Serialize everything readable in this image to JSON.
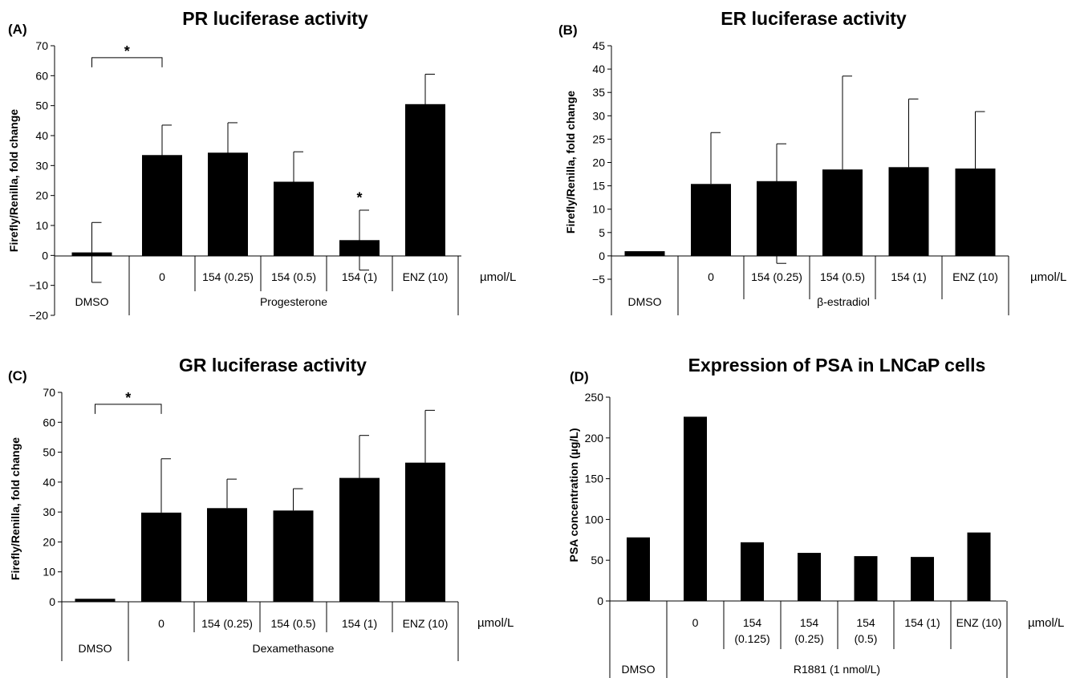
{
  "figure": {
    "panels": [
      {
        "letter": "(A)",
        "chart_data": {
          "type": "bar",
          "title": "PR luciferase activity",
          "ylabel": "Firefly/Renilla, fold change",
          "xunit": "µmol/L",
          "ylim": [
            -20,
            70
          ],
          "yticks": [
            "70",
            "60",
            "50",
            "40",
            "30",
            "20",
            "10",
            "0",
            "−10",
            "−20"
          ],
          "categories": [
            "",
            "0",
            "154 (0.25)",
            "154 (0.5)",
            "154 (1)",
            "ENZ (10)"
          ],
          "values": [
            1,
            33.5,
            34.3,
            24.6,
            5.1,
            50.5
          ],
          "errors": [
            10,
            10,
            10,
            10,
            10,
            10
          ],
          "groups": [
            {
              "label": "DMSO",
              "span": 1
            },
            {
              "label": "Progesterone",
              "span": 5
            }
          ],
          "significance": [
            {
              "type": "bracket",
              "from": 0,
              "to": 1,
              "y": 66,
              "label": "*"
            },
            {
              "type": "mark",
              "index": 4,
              "y": 16,
              "label": "*"
            }
          ],
          "grid": false,
          "legend": "none"
        }
      },
      {
        "letter": "(B)",
        "chart_data": {
          "type": "bar",
          "title": "ER luciferase activity",
          "ylabel": "Firefly/Renilla, fold change",
          "xunit": "µmol/L",
          "ylim": [
            -5,
            45
          ],
          "yticks": [
            "45",
            "40",
            "35",
            "30",
            "25",
            "20",
            "15",
            "10",
            "5",
            "0",
            "−5"
          ],
          "categories": [
            "",
            "0",
            "154 (0.25)",
            "154 (0.5)",
            "154 (1)",
            "ENZ (10)"
          ],
          "values": [
            1,
            15.4,
            16,
            18.5,
            19,
            18.7
          ],
          "errors": [
            0,
            11,
            8,
            20,
            14.6,
            12.2
          ],
          "lower_error_index": 2,
          "lower_error_value": -1.6,
          "groups": [
            {
              "label": "DMSO",
              "span": 1
            },
            {
              "label": "β-estradiol",
              "span": 5
            }
          ],
          "significance": [],
          "grid": false,
          "legend": "none"
        }
      },
      {
        "letter": "(C)",
        "chart_data": {
          "type": "bar",
          "title": "GR luciferase activity",
          "ylabel": "Firefly/Renilla, fold change",
          "xunit": "µmol/L",
          "ylim": [
            0,
            70
          ],
          "yticks": [
            "70",
            "60",
            "50",
            "40",
            "30",
            "20",
            "10",
            "0"
          ],
          "categories": [
            "",
            "0",
            "154 (0.25)",
            "154 (0.5)",
            "154 (1)",
            "ENZ (10)"
          ],
          "values": [
            1,
            29.8,
            31.3,
            30.5,
            41.4,
            46.5
          ],
          "errors": [
            0,
            18,
            9.7,
            7.3,
            14.2,
            17.5
          ],
          "groups": [
            {
              "label": "DMSO",
              "span": 1
            },
            {
              "label": "Dexamethasone",
              "span": 5
            }
          ],
          "significance": [
            {
              "type": "bracket",
              "from": 0,
              "to": 1,
              "y": 66,
              "label": "*"
            }
          ],
          "grid": false,
          "legend": "none"
        }
      },
      {
        "letter": "(D)",
        "chart_data": {
          "type": "bar",
          "title": "Expression of PSA in LNCaP cells",
          "ylabel": "PSA concentration (µg/L)",
          "xunit": "µmol/L",
          "ylim": [
            0,
            250
          ],
          "yticks": [
            "250",
            "200",
            "150",
            "100",
            "50",
            "0"
          ],
          "categories": [
            "",
            "0",
            "154\n(0.125)",
            "154\n(0.25)",
            "154\n(0.5)",
            "154 (1)",
            "ENZ (10)"
          ],
          "values": [
            78,
            226,
            72,
            59,
            55,
            54,
            84
          ],
          "errors": [
            0,
            0,
            0,
            0,
            0,
            0,
            0
          ],
          "groups": [
            {
              "label": "DMSO",
              "span": 1
            },
            {
              "label": "R1881 (1 nmol/L)",
              "span": 6
            }
          ],
          "significance": [],
          "grid": false,
          "legend": "none"
        }
      }
    ]
  }
}
